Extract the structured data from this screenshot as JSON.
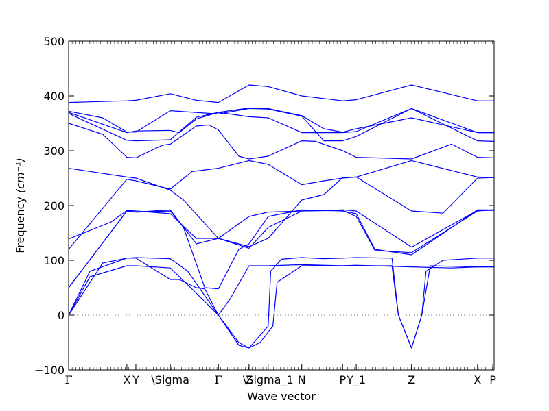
{
  "chart_data": {
    "type": "line",
    "xlabel": "Wave vector",
    "ylabel": "Frequency ",
    "ylabel_unit": "(cm⁻¹)",
    "ylim": [
      -100,
      500
    ],
    "yticks": [
      -100,
      0,
      100,
      200,
      300,
      400,
      500
    ],
    "ytick_labels": [
      "−100",
      "0",
      "100",
      "200",
      "300",
      "400",
      "500"
    ],
    "xlim": [
      0,
      1
    ],
    "zero_line": true,
    "line_color": "#0000ff",
    "high_symmetry_points": [
      {
        "label": "Γ",
        "x": 0.0
      },
      {
        "label": "X",
        "x": 0.137
      },
      {
        "label": "Y",
        "x": 0.158
      },
      {
        "label": "\\Sigma",
        "x": 0.239
      },
      {
        "label": "Γ",
        "x": 0.352
      },
      {
        "label": "Z",
        "x": 0.424
      },
      {
        "label": "\\Sigma_1",
        "x": 0.469
      },
      {
        "label": "N",
        "x": 0.548
      },
      {
        "label": "P",
        "x": 0.644
      },
      {
        "label": "Y_1",
        "x": 0.676
      },
      {
        "label": "Z",
        "x": 0.806
      },
      {
        "label": "X",
        "x": 0.961
      },
      {
        "label": "P",
        "x": 0.997
      }
    ],
    "series": [
      {
        "values": [
          [
            0,
            388
          ],
          [
            0.137,
            391
          ],
          [
            0.158,
            392
          ],
          [
            0.239,
            404
          ],
          [
            0.3,
            392
          ],
          [
            0.352,
            388
          ],
          [
            0.424,
            420
          ],
          [
            0.469,
            417
          ],
          [
            0.548,
            400
          ],
          [
            0.644,
            391
          ],
          [
            0.676,
            393
          ],
          [
            0.806,
            420
          ],
          [
            0.961,
            391
          ],
          [
            1,
            391
          ]
        ]
      },
      {
        "values": [
          [
            0,
            372
          ],
          [
            0.08,
            360
          ],
          [
            0.137,
            334
          ],
          [
            0.158,
            334
          ],
          [
            0.239,
            373
          ],
          [
            0.352,
            367
          ],
          [
            0.424,
            377
          ],
          [
            0.469,
            376
          ],
          [
            0.548,
            363
          ],
          [
            0.6,
            318
          ],
          [
            0.644,
            318
          ],
          [
            0.676,
            326
          ],
          [
            0.806,
            377
          ],
          [
            0.961,
            333
          ],
          [
            1,
            333
          ]
        ]
      },
      {
        "values": [
          [
            0,
            370
          ],
          [
            0.137,
            333
          ],
          [
            0.158,
            336
          ],
          [
            0.239,
            337
          ],
          [
            0.26,
            333
          ],
          [
            0.3,
            358
          ],
          [
            0.352,
            370
          ],
          [
            0.424,
            378
          ],
          [
            0.469,
            377
          ],
          [
            0.548,
            364
          ],
          [
            0.6,
            340
          ],
          [
            0.644,
            334
          ],
          [
            0.676,
            340
          ],
          [
            0.806,
            360
          ],
          [
            0.961,
            333
          ],
          [
            1,
            333
          ]
        ]
      },
      {
        "values": [
          [
            0,
            368
          ],
          [
            0.137,
            319
          ],
          [
            0.158,
            318
          ],
          [
            0.239,
            320
          ],
          [
            0.3,
            361
          ],
          [
            0.352,
            370
          ],
          [
            0.424,
            362
          ],
          [
            0.469,
            360
          ],
          [
            0.548,
            333
          ],
          [
            0.644,
            333
          ],
          [
            0.676,
            335
          ],
          [
            0.806,
            377
          ],
          [
            0.961,
            318
          ],
          [
            1,
            317
          ]
        ]
      },
      {
        "values": [
          [
            0,
            350
          ],
          [
            0.08,
            330
          ],
          [
            0.137,
            288
          ],
          [
            0.158,
            287
          ],
          [
            0.22,
            310
          ],
          [
            0.239,
            312
          ],
          [
            0.3,
            345
          ],
          [
            0.33,
            347
          ],
          [
            0.352,
            338
          ],
          [
            0.4,
            290
          ],
          [
            0.424,
            285
          ],
          [
            0.469,
            290
          ],
          [
            0.548,
            318
          ],
          [
            0.58,
            317
          ],
          [
            0.644,
            300
          ],
          [
            0.676,
            288
          ],
          [
            0.806,
            285
          ],
          [
            0.9,
            312
          ],
          [
            0.961,
            288
          ],
          [
            1,
            287
          ]
        ]
      },
      {
        "values": [
          [
            0,
            268
          ],
          [
            0.137,
            252
          ],
          [
            0.158,
            250
          ],
          [
            0.239,
            228
          ],
          [
            0.27,
            210
          ],
          [
            0.352,
            140
          ],
          [
            0.424,
            122
          ],
          [
            0.469,
            160
          ],
          [
            0.548,
            190
          ],
          [
            0.644,
            192
          ],
          [
            0.676,
            190
          ],
          [
            0.806,
            124
          ],
          [
            0.961,
            191
          ],
          [
            1,
            191
          ]
        ]
      },
      {
        "values": [
          [
            0,
            139
          ],
          [
            0.1,
            170
          ],
          [
            0.137,
            191
          ],
          [
            0.158,
            190
          ],
          [
            0.239,
            185
          ],
          [
            0.3,
            140
          ],
          [
            0.352,
            140
          ],
          [
            0.424,
            125
          ],
          [
            0.469,
            140
          ],
          [
            0.548,
            210
          ],
          [
            0.6,
            220
          ],
          [
            0.644,
            251
          ],
          [
            0.676,
            252
          ],
          [
            0.806,
            190
          ],
          [
            0.88,
            186
          ],
          [
            0.961,
            250
          ],
          [
            1,
            251
          ]
        ]
      },
      {
        "values": [
          [
            0,
            120
          ],
          [
            0.137,
            248
          ],
          [
            0.158,
            245
          ],
          [
            0.239,
            230
          ],
          [
            0.29,
            262
          ],
          [
            0.352,
            268
          ],
          [
            0.424,
            282
          ],
          [
            0.469,
            275
          ],
          [
            0.548,
            238
          ],
          [
            0.6,
            245
          ],
          [
            0.644,
            250
          ],
          [
            0.676,
            252
          ],
          [
            0.806,
            282
          ],
          [
            0.961,
            252
          ],
          [
            1,
            251
          ]
        ]
      },
      {
        "values": [
          [
            0,
            50
          ],
          [
            0.137,
            190
          ],
          [
            0.158,
            188
          ],
          [
            0.239,
            190
          ],
          [
            0.27,
            160
          ],
          [
            0.32,
            50
          ],
          [
            0.352,
            48
          ],
          [
            0.4,
            120
          ],
          [
            0.424,
            130
          ],
          [
            0.469,
            180
          ],
          [
            0.548,
            192
          ],
          [
            0.644,
            190
          ],
          [
            0.676,
            185
          ],
          [
            0.72,
            120
          ],
          [
            0.806,
            110
          ],
          [
            0.961,
            192
          ],
          [
            1,
            192
          ]
        ]
      },
      {
        "values": [
          [
            0,
            50
          ],
          [
            0.137,
            190
          ],
          [
            0.158,
            188
          ],
          [
            0.239,
            192
          ],
          [
            0.3,
            130
          ],
          [
            0.352,
            140
          ],
          [
            0.424,
            180
          ],
          [
            0.469,
            188
          ],
          [
            0.548,
            190
          ],
          [
            0.644,
            191
          ],
          [
            0.676,
            180
          ],
          [
            0.72,
            118
          ],
          [
            0.806,
            114
          ],
          [
            0.961,
            190
          ],
          [
            1,
            192
          ]
        ]
      },
      {
        "values": [
          [
            0,
            0
          ],
          [
            0.05,
            80
          ],
          [
            0.137,
            104
          ],
          [
            0.158,
            105
          ],
          [
            0.239,
            103
          ],
          [
            0.28,
            80
          ],
          [
            0.352,
            0
          ],
          [
            0.4,
            -50
          ],
          [
            0.424,
            -60
          ],
          [
            0.469,
            -20
          ],
          [
            0.475,
            80
          ],
          [
            0.5,
            102
          ],
          [
            0.548,
            105
          ],
          [
            0.6,
            103
          ],
          [
            0.644,
            104
          ],
          [
            0.676,
            105
          ],
          [
            0.76,
            104
          ],
          [
            0.775,
            0
          ],
          [
            0.806,
            -60
          ],
          [
            0.83,
            0
          ],
          [
            0.84,
            80
          ],
          [
            0.88,
            100
          ],
          [
            0.961,
            104
          ],
          [
            1,
            104
          ]
        ]
      },
      {
        "values": [
          [
            0,
            0
          ],
          [
            0.05,
            70
          ],
          [
            0.137,
            90
          ],
          [
            0.158,
            90
          ],
          [
            0.239,
            86
          ],
          [
            0.3,
            40
          ],
          [
            0.352,
            0
          ],
          [
            0.4,
            -55
          ],
          [
            0.424,
            -60
          ],
          [
            0.45,
            -50
          ],
          [
            0.48,
            -20
          ],
          [
            0.49,
            60
          ],
          [
            0.548,
            90
          ],
          [
            0.644,
            90
          ],
          [
            0.676,
            90
          ],
          [
            0.76,
            90
          ],
          [
            0.775,
            0
          ],
          [
            0.806,
            -60
          ],
          [
            0.83,
            0
          ],
          [
            0.85,
            90
          ],
          [
            0.961,
            88
          ],
          [
            1,
            88
          ]
        ]
      },
      {
        "values": [
          [
            0,
            0
          ],
          [
            0.08,
            95
          ],
          [
            0.137,
            104
          ],
          [
            0.158,
            104
          ],
          [
            0.239,
            65
          ],
          [
            0.26,
            65
          ],
          [
            0.3,
            50
          ],
          [
            0.32,
            48
          ],
          [
            0.352,
            0
          ],
          [
            0.38,
            30
          ],
          [
            0.424,
            90
          ],
          [
            0.469,
            90
          ],
          [
            0.548,
            92
          ],
          [
            0.644,
            90
          ],
          [
            0.676,
            91
          ],
          [
            0.806,
            88
          ],
          [
            0.9,
            86
          ],
          [
            0.961,
            88
          ],
          [
            1,
            88
          ]
        ]
      }
    ]
  }
}
